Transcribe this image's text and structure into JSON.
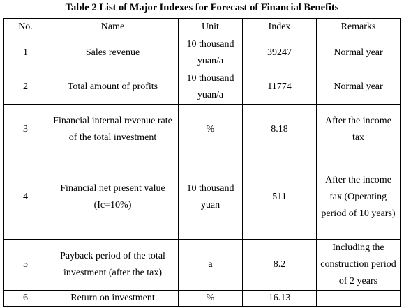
{
  "caption": "Table 2 List of Major Indexes for Forecast of Financial Benefits",
  "headers": {
    "no": "No.",
    "name": "Name",
    "unit": "Unit",
    "index": "Index",
    "remarks": "Remarks"
  },
  "rows": [
    {
      "no": "1",
      "name": "Sales revenue",
      "unit": "10 thousand yuan/a",
      "index": "39247",
      "remarks": "Normal year"
    },
    {
      "no": "2",
      "name": "Total amount of profits",
      "unit": "10 thousand yuan/a",
      "index": "11774",
      "remarks": "Normal year"
    },
    {
      "no": "3",
      "name": "Financial internal revenue rate of the total investment",
      "unit": "%",
      "index": "8.18",
      "remarks": "After the income tax"
    },
    {
      "no": "4",
      "name": "Financial net present value (Ic=10%)",
      "unit": "10 thousand yuan",
      "index": "511",
      "remarks": "After the income tax (Operating period of 10 years)"
    },
    {
      "no": "5",
      "name": "Payback period of the total investment (after the tax)",
      "unit": "a",
      "index": "8.2",
      "remarks": "Including the construction period of 2 years"
    },
    {
      "no": "6",
      "name": "Return on investment",
      "unit": "%",
      "index": "16.13",
      "remarks": ""
    }
  ]
}
